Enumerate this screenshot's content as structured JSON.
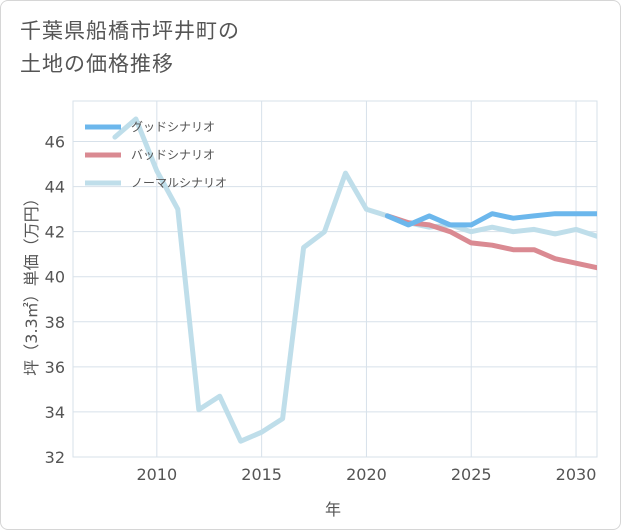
{
  "title": {
    "line1": "千葉県船橋市坪井町の",
    "line2": "土地の価格推移"
  },
  "colors": {
    "good": "#6cb7ec",
    "bad": "#da8a92",
    "normal": "#bfdeea",
    "grid": "#d7e1ea",
    "plot_bg": "#ffffff"
  },
  "chart_data": {
    "type": "line",
    "title": "千葉県船橋市坪井町の土地の価格推移",
    "xlabel": "年",
    "ylabel": "坪（3.3㎡）単価（万円）",
    "xlim": [
      2006,
      2031
    ],
    "ylim": [
      32,
      47.8
    ],
    "x_ticks": [
      2010,
      2015,
      2020,
      2025,
      2030
    ],
    "y_ticks": [
      32,
      34,
      36,
      38,
      40,
      42,
      44,
      46
    ],
    "grid": true,
    "legend_position": "top-left",
    "series": [
      {
        "name": "グッドシナリオ",
        "color_key": "good",
        "x": [
          2021,
          2022,
          2023,
          2024,
          2025,
          2026,
          2027,
          2028,
          2029,
          2030,
          2031
        ],
        "values": [
          42.7,
          42.3,
          42.7,
          42.3,
          42.3,
          42.8,
          42.6,
          42.7,
          42.8,
          42.8,
          42.8
        ]
      },
      {
        "name": "バッドシナリオ",
        "color_key": "bad",
        "x": [
          2021,
          2022,
          2023,
          2024,
          2025,
          2026,
          2027,
          2028,
          2029,
          2030,
          2031
        ],
        "values": [
          42.7,
          42.4,
          42.3,
          42.0,
          41.5,
          41.4,
          41.2,
          41.2,
          40.8,
          40.6,
          40.4
        ]
      },
      {
        "name": "ノーマルシナリオ",
        "color_key": "normal",
        "x": [
          2008,
          2009,
          2010,
          2011,
          2012,
          2013,
          2014,
          2015,
          2016,
          2017,
          2018,
          2019,
          2020,
          2021,
          2022,
          2023,
          2024,
          2025,
          2026,
          2027,
          2028,
          2029,
          2030,
          2031
        ],
        "values": [
          46.2,
          47.0,
          44.7,
          43.0,
          34.1,
          34.7,
          32.7,
          33.1,
          33.7,
          41.3,
          42.0,
          44.6,
          43.0,
          42.7,
          42.4,
          42.2,
          42.3,
          42.0,
          42.2,
          42.0,
          42.1,
          41.9,
          42.1,
          41.8
        ]
      }
    ]
  }
}
